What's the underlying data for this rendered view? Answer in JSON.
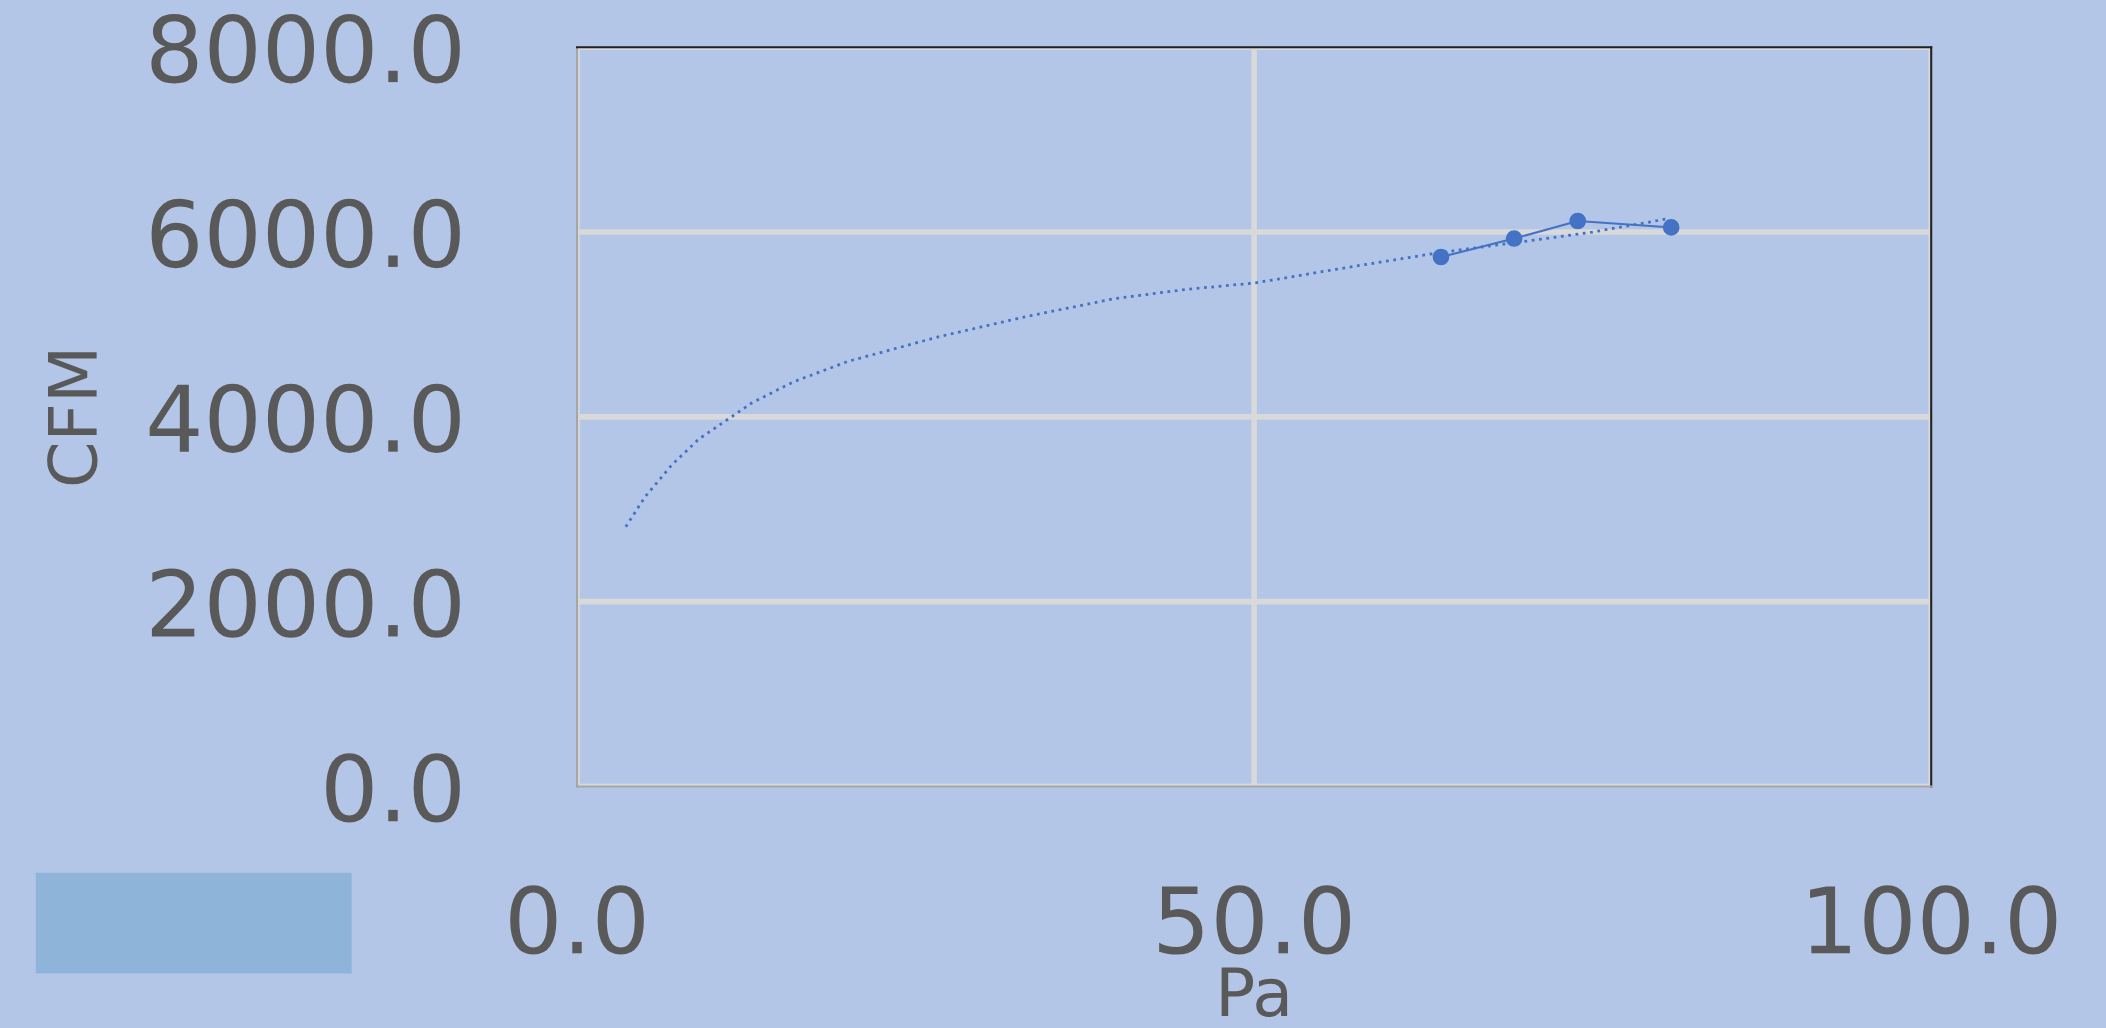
{
  "chart_data": {
    "type": "line",
    "xlabel": "Pa",
    "ylabel": "CFM",
    "series": [
      {
        "color": "#4472c4",
        "marker": "circle",
        "line_style": "solid",
        "x": [
          63.8,
          69.2,
          73.9,
          80.8
        ],
        "values": [
          5730,
          5930,
          6120,
          6050
        ]
      },
      {
        "color": "#4472c4",
        "marker": "none",
        "line_style": "dotted",
        "x": [
          3.6,
          5,
          7,
          9,
          12.9,
          16,
          20,
          26.8,
          33,
          39.7,
          45,
          50.1,
          57,
          63.8,
          70,
          75,
          80.4
        ],
        "values": [
          2810,
          3130,
          3480,
          3760,
          4150,
          4380,
          4600,
          4870,
          5080,
          5280,
          5380,
          5450,
          5620,
          5780,
          5900,
          6000,
          6140
        ]
      }
    ],
    "xlim": [
      0,
      100
    ],
    "xticks": [
      {
        "value": 0,
        "label": "0.0"
      },
      {
        "value": 50,
        "label": "50.0"
      },
      {
        "value": 100,
        "label": "100.0"
      }
    ],
    "ylim": [
      0,
      8000
    ],
    "yticks": [
      {
        "value": 0,
        "label": "0.0"
      },
      {
        "value": 2000,
        "label": "2000.0"
      },
      {
        "value": 4000,
        "label": "4000.0"
      },
      {
        "value": 6000,
        "label": "6000.0"
      },
      {
        "value": 8000,
        "label": "8000.0"
      }
    ],
    "grid": true
  }
}
